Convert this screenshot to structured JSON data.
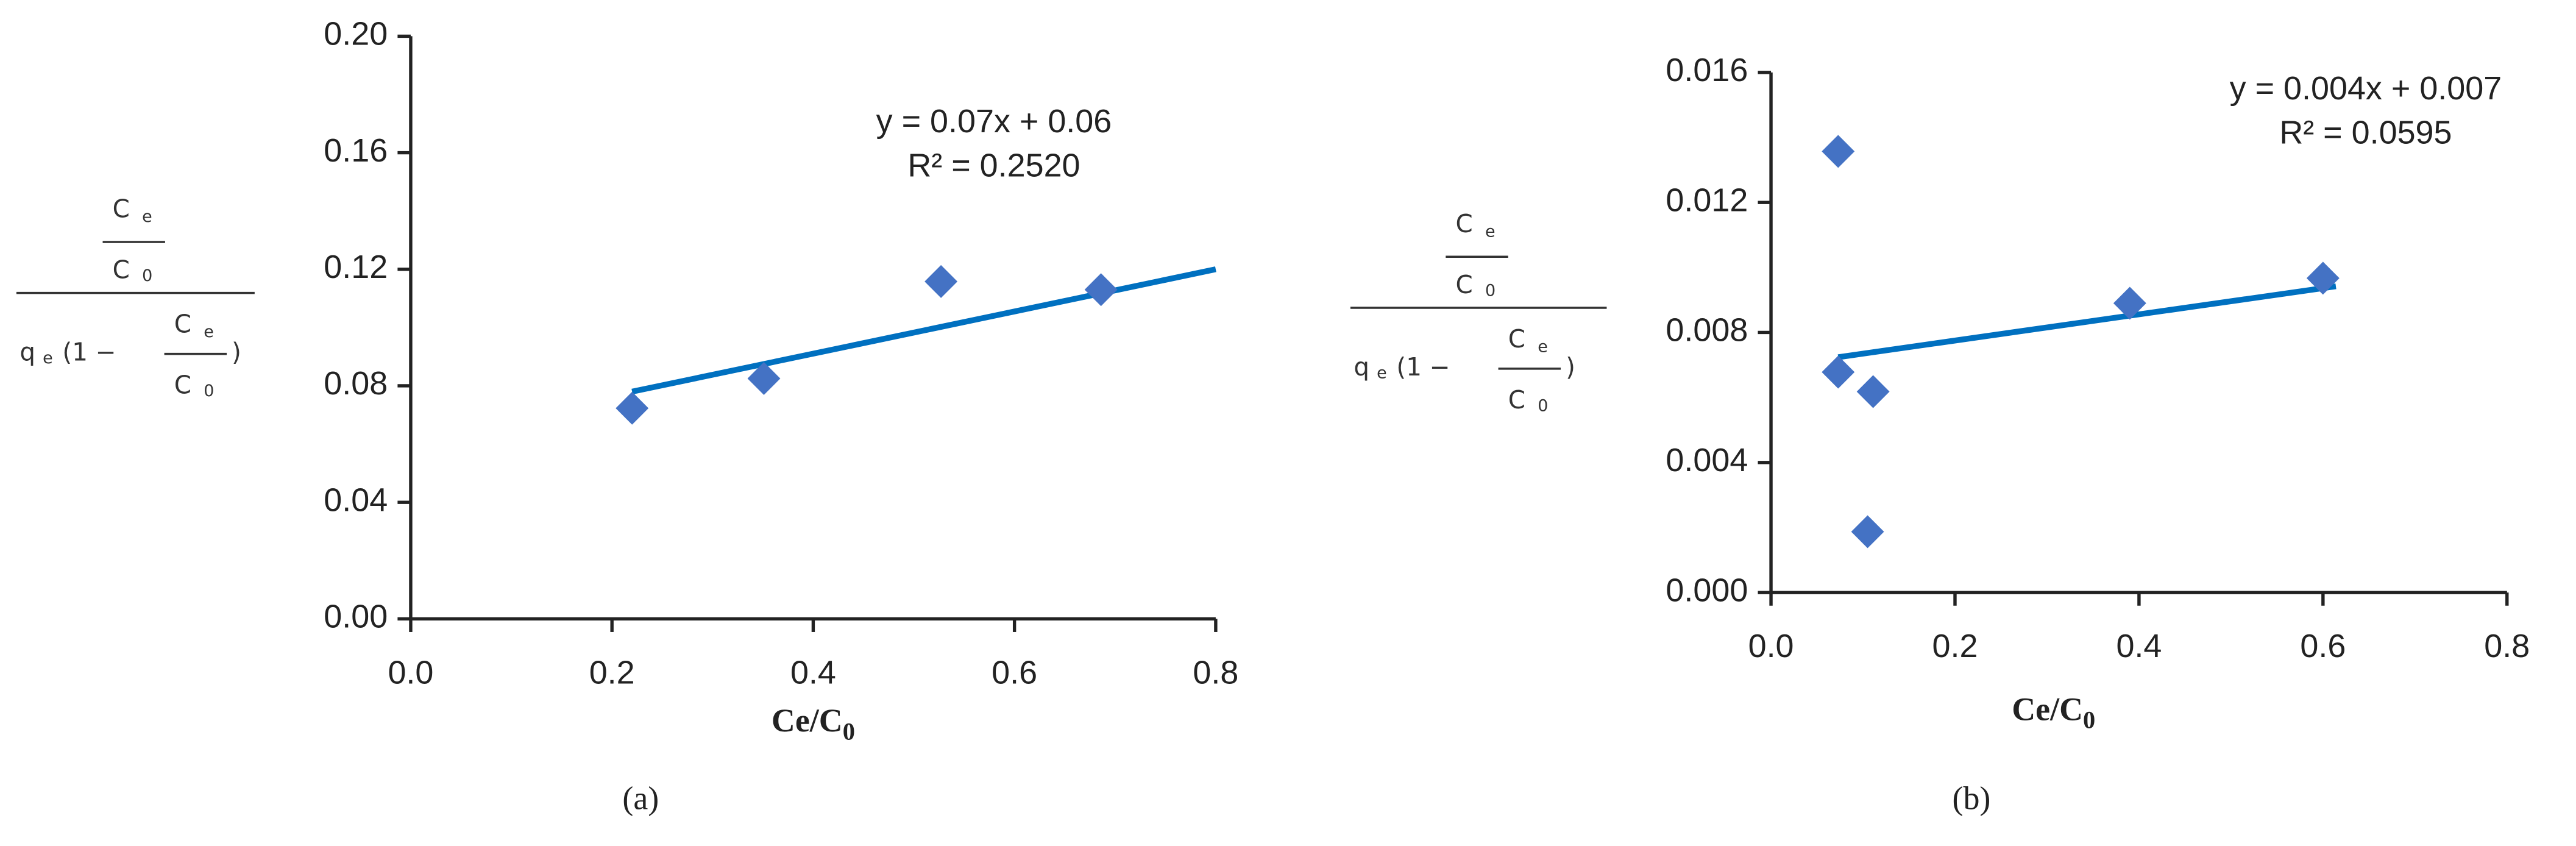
{
  "chart_data": [
    {
      "type": "scatter",
      "panel": "(a)",
      "xlabel": {
        "text": "Ce/C",
        "sub": "0"
      },
      "ylabel": {
        "C": "C",
        "e": "e",
        "zero": "0",
        "q": "q",
        "open": "(1 −",
        "close": ")"
      },
      "xlim": [
        0,
        0.8
      ],
      "xticks": [
        {
          "value": 0,
          "label": "0.0"
        },
        0.2,
        0.4,
        0.6,
        0.8
      ],
      "ylim": [
        0,
        0.2
      ],
      "yticks": [
        {
          "value": 0,
          "label": "0.00"
        },
        0.04,
        0.08,
        0.12,
        0.16,
        {
          "value": 0.2,
          "label": "0.20"
        }
      ],
      "x": [
        0.22,
        0.351,
        0.527,
        0.686
      ],
      "values": [
        0.0723,
        0.0825,
        0.1158,
        0.113
      ],
      "color": "#4472c4",
      "trendline": {
        "x": [
          0.22,
          0.8
        ],
        "values": [
          0.078,
          0.12
        ],
        "color": "#0070c0"
      },
      "annotations": [
        "y = 0.07x + 0.06",
        "R² = 0.2520"
      ]
    },
    {
      "type": "scatter",
      "panel": "(b)",
      "xlabel": {
        "text": "Ce/C",
        "sub": "0"
      },
      "ylabel": {
        "C": "C",
        "e": "e",
        "zero": "0",
        "q": "q",
        "open": "(1 −",
        "close": ")"
      },
      "xlim": [
        0,
        0.8
      ],
      "xticks": [
        {
          "value": 0,
          "label": "0.0"
        },
        0.2,
        0.4,
        0.6,
        0.8
      ],
      "ylim": [
        0,
        0.016
      ],
      "yticks": [
        {
          "value": 0,
          "label": "0.000"
        },
        0.004,
        0.008,
        0.012,
        0.016
      ],
      "x": [
        0.073,
        0.073,
        0.111,
        0.105,
        0.39,
        0.6
      ],
      "values": [
        0.01357,
        0.00678,
        0.00618,
        0.00187,
        0.0089,
        0.00967
      ],
      "color": "#4472c4",
      "trendline": {
        "x": [
          0.073,
          0.614
        ],
        "values": [
          0.00724,
          0.00942
        ],
        "color": "#0070c0"
      },
      "annotations": [
        "y = 0.004x + 0.007",
        "R² = 0.0595"
      ]
    }
  ]
}
